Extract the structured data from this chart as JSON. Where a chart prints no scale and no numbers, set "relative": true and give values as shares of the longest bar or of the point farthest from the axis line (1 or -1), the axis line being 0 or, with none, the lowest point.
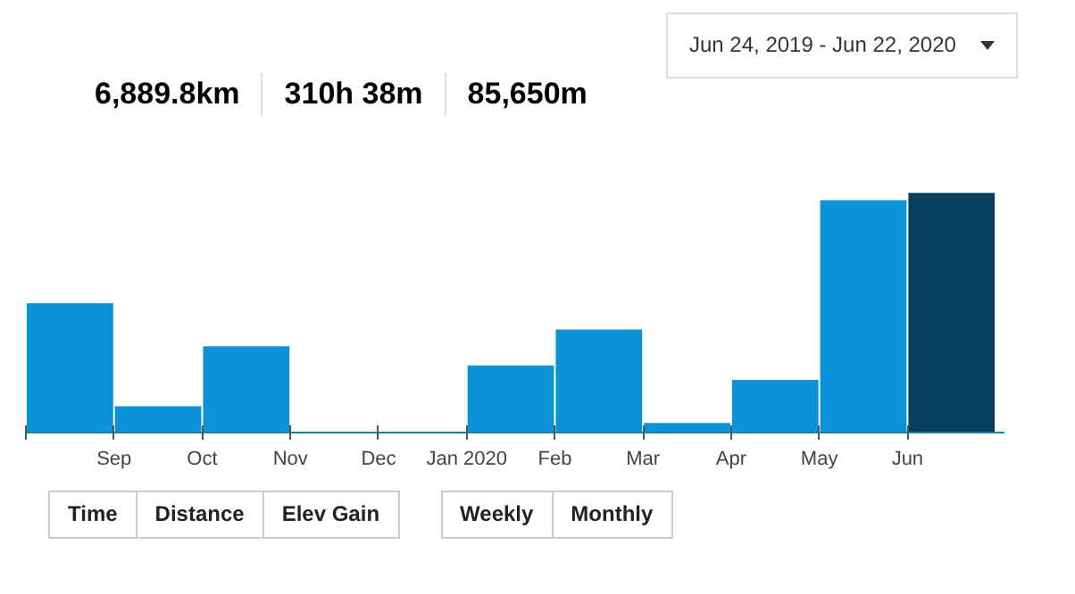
{
  "chart_data": {
    "type": "bar",
    "relative": true,
    "categories": [
      null,
      "Sep",
      "Oct",
      "Nov",
      "Dec",
      "Jan 2020",
      "Feb",
      "Mar",
      "Apr",
      "May",
      "Jun"
    ],
    "values": [
      0.54,
      0.11,
      0.36,
      0,
      0,
      0.28,
      0.43,
      0.04,
      0.22,
      0.97,
      1
    ],
    "colors": [
      "#0a93d6",
      "#0a93d6",
      "#0a93d6",
      "#0a93d6",
      "#0a93d6",
      "#0a93d6",
      "#0a93d6",
      "#0a93d6",
      "#0a93d6",
      "#0a93d6",
      "#06405e"
    ],
    "annotations": [
      "Jun 24, 2019 - Jun 22, 2020",
      "6,889.8km",
      "310h 38m",
      "85,650m",
      "Time",
      "Distance",
      "Elev Gain",
      "Weekly",
      "Monthly"
    ]
  }
}
